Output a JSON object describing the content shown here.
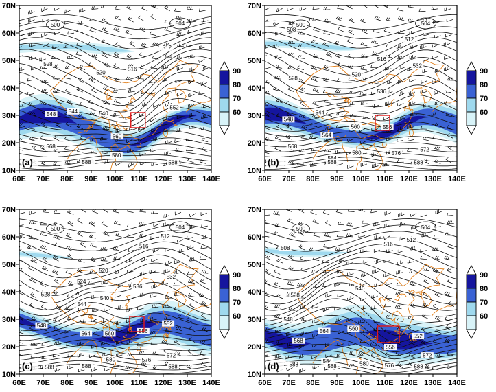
{
  "figure": {
    "background": "#ffffff",
    "x_tick_labels": [
      "60E",
      "70E",
      "80E",
      "90E",
      "100E",
      "110E",
      "120E",
      "130E",
      "140E"
    ],
    "y_tick_labels": [
      "70N",
      "60N",
      "50N",
      "40N",
      "30N",
      "20N",
      "10N"
    ],
    "colorbar": {
      "tick_labels": [
        "90",
        "80",
        "70",
        "60"
      ],
      "segment_colors": [
        "#15159e",
        "#3a62d4",
        "#9fd9ee",
        "#d8f3f8"
      ],
      "arrow_fill": "#ffffff"
    }
  },
  "chart_data": {
    "type": "heatmap",
    "description": "Four-panel (a-d) synoptic weather maps over East Asia: black 500-hPa geopotential-height contours (interval 4, values 500-588) with inline labels, dense black wind barbs, blue shaded field (levels 60/70/80/90) forming a subtropical band near 20-35N, orange coastlines/boundaries of China and surroundings, and a small red study-region box near 105-115E / 22-31N.",
    "x_axis": {
      "tick_labels": [
        "60E",
        "70E",
        "80E",
        "90E",
        "100E",
        "110E",
        "120E",
        "130E",
        "140E"
      ],
      "range_deg": [
        60,
        140
      ]
    },
    "y_axis": {
      "tick_labels": [
        "10N",
        "20N",
        "30N",
        "40N",
        "50N",
        "60N",
        "70N"
      ],
      "range_deg": [
        10,
        70
      ]
    },
    "grid": false,
    "legend_position": "right-colorbar-per-panel",
    "contour_levels": [
      500,
      504,
      508,
      512,
      516,
      520,
      524,
      528,
      532,
      536,
      540,
      544,
      548,
      552,
      556,
      560,
      564,
      568,
      572,
      576,
      580,
      584,
      588
    ],
    "contour_labels_visible": [
      508,
      512,
      516,
      520,
      524,
      528,
      532,
      536,
      540,
      544,
      548,
      552,
      556,
      560,
      564,
      568,
      572,
      576,
      580,
      584,
      588
    ],
    "closed_low_labels": [
      "500",
      "504"
    ],
    "subtropical_high_label": "588",
    "shading_levels": [
      60,
      70,
      80,
      90
    ],
    "shading_colors": {
      "60": "#d8f3f8",
      "70": "#9fd9ee",
      "80": "#3a62d4",
      "90": "#15159e"
    },
    "boundary_color": "#e2801c",
    "red_box_color": "#e01818",
    "panels": [
      {
        "label": "(a)",
        "red_box": [
          106.5,
          25.5,
          112.5,
          31
        ],
        "band_lat": 26.5,
        "band_half": 6.0,
        "trough_lon": 108,
        "trough_depth": 7.0,
        "wave_phase": 0.2,
        "band_phase": 0.5,
        "dark_phase": 0.3,
        "north_band": {
          "lat": 54,
          "lon_end": 108,
          "half": 1.8
        },
        "seed": 11
      },
      {
        "label": "(b)",
        "red_box": [
          106,
          24.5,
          112,
          30
        ],
        "band_lat": 27.0,
        "band_half": 5.6,
        "trough_lon": 110,
        "trough_depth": 6.0,
        "wave_phase": 1.0,
        "band_phase": 1.4,
        "dark_phase": 1.1,
        "north_band": {
          "lat": 55,
          "lon_end": 100,
          "half": 1.5
        },
        "seed": 22
      },
      {
        "label": "(c)",
        "red_box": [
          106,
          25.5,
          112,
          31
        ],
        "band_lat": 27.0,
        "band_half": 6.2,
        "trough_lon": 104,
        "trough_depth": 6.5,
        "wave_phase": 1.9,
        "band_phase": 2.3,
        "dark_phase": 2.2,
        "north_band": {
          "lat": 53,
          "lon_end": 82,
          "half": 1.2
        },
        "seed": 33
      },
      {
        "label": "(d)",
        "red_box": [
          107,
          21.5,
          116,
          27.5
        ],
        "band_lat": 24.5,
        "band_half": 7.5,
        "trough_lon": 112,
        "trough_depth": 7.5,
        "wave_phase": 2.7,
        "band_phase": 3.2,
        "dark_phase": 0.9,
        "north_band": {
          "lat": 55,
          "lon_end": 95,
          "half": 1.4
        },
        "seed": 44
      }
    ]
  }
}
